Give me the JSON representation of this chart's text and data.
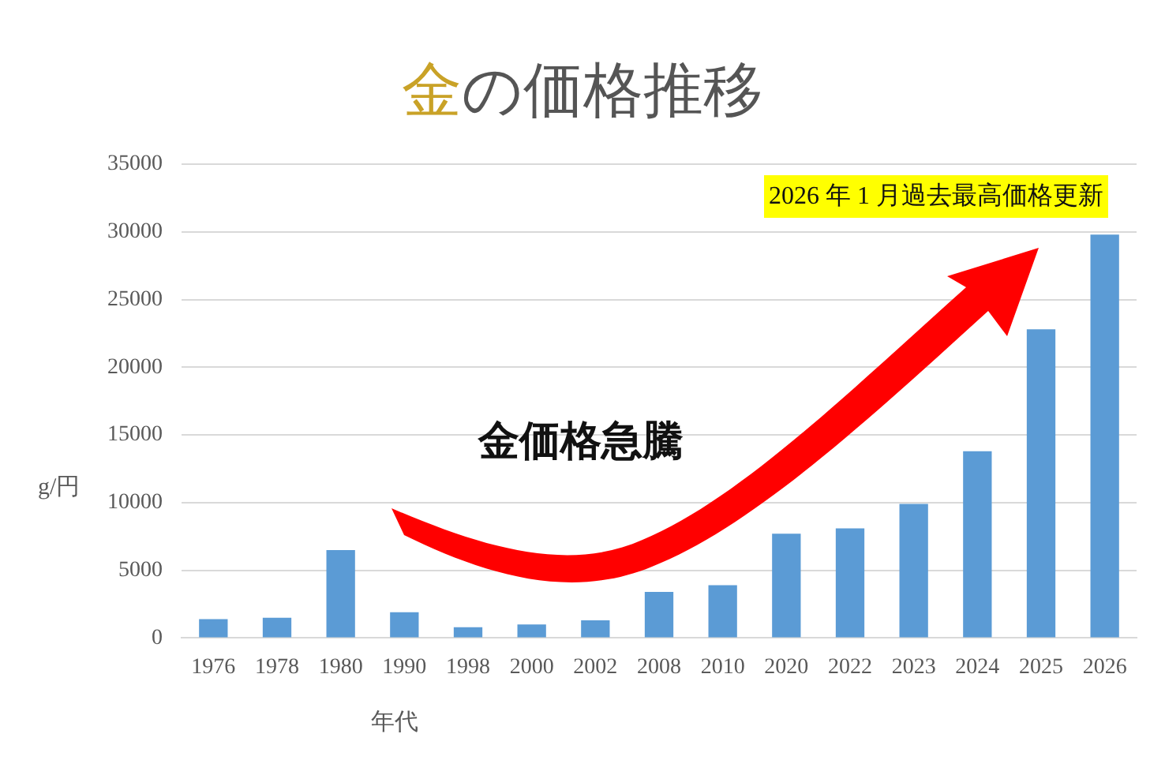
{
  "chart_data": {
    "type": "bar",
    "title": "金の価格推移",
    "xlabel": "年代",
    "ylabel": "g/円",
    "categories": [
      "1976",
      "1978",
      "1980",
      "1990",
      "1998",
      "2000",
      "2002",
      "2008",
      "2010",
      "2020",
      "2022",
      "2023",
      "2024",
      "2025",
      "2026"
    ],
    "values": [
      1400,
      1500,
      6500,
      1900,
      800,
      1000,
      1300,
      3400,
      3900,
      7700,
      8100,
      9900,
      13800,
      22800,
      29800
    ],
    "color": "#5b9bd5",
    "ylim": [
      0,
      35000
    ],
    "yticks": [
      0,
      5000,
      10000,
      15000,
      20000,
      25000,
      30000,
      35000
    ],
    "grid": "y",
    "legend": false,
    "annotations": [
      "金価格急騰",
      "2026 年 1 月過去最高価格更新"
    ]
  }
}
